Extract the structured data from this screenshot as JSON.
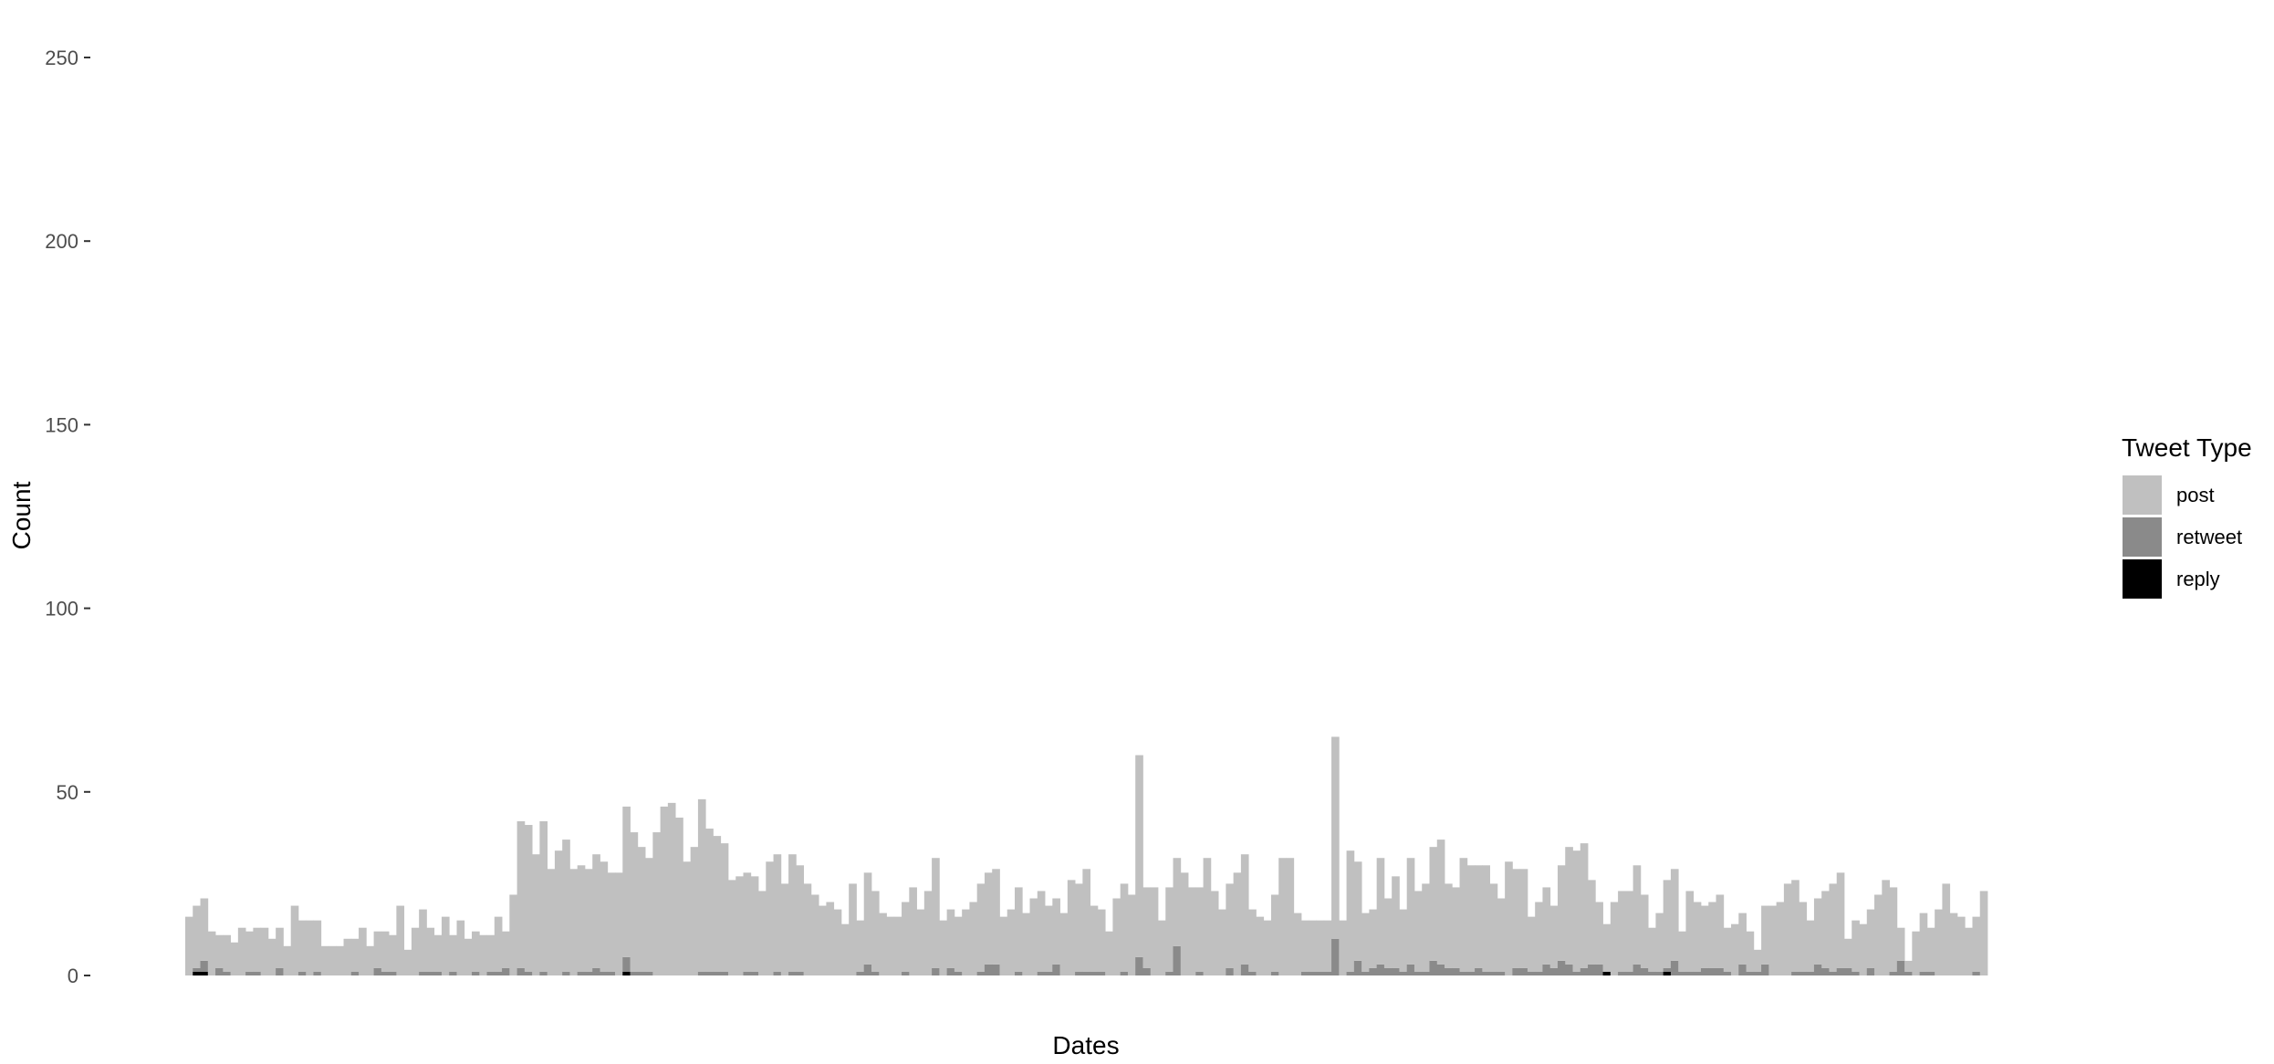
{
  "chart_data": {
    "type": "bar",
    "stacked": true,
    "xlabel": "Dates",
    "ylabel": "Count",
    "ylim": [
      0,
      260
    ],
    "yticks": [
      0,
      50,
      100,
      150,
      200,
      250
    ],
    "grid": false,
    "legend_position": "right",
    "legend": {
      "title": "Tweet Type",
      "entries": [
        {
          "label": "post",
          "color": "#c0c0c0"
        },
        {
          "label": "retweet",
          "color": "#8a8a8a"
        },
        {
          "label": "reply",
          "color": "#000000"
        }
      ]
    },
    "series": [
      {
        "name": "post",
        "color": "#c0c0c0",
        "values": [
          16,
          17,
          17,
          12,
          9,
          10,
          9,
          13,
          11,
          12,
          13,
          10,
          11,
          8,
          19,
          14,
          15,
          14,
          8,
          8,
          8,
          10,
          9,
          13,
          8,
          10,
          11,
          10,
          19,
          7,
          13,
          17,
          12,
          10,
          16,
          10,
          15,
          10,
          11,
          11,
          10,
          15,
          10,
          22,
          40,
          40,
          33,
          41,
          29,
          34,
          36,
          29,
          29,
          28,
          31,
          30,
          27,
          28,
          41,
          38,
          34,
          31,
          39,
          46,
          47,
          43,
          31,
          35,
          47,
          39,
          37,
          35,
          26,
          27,
          27,
          26,
          23,
          31,
          32,
          25,
          32,
          29,
          25,
          22,
          19,
          20,
          18,
          14,
          25,
          14,
          25,
          22,
          17,
          16,
          16,
          19,
          24,
          18,
          23,
          30,
          15,
          16,
          15,
          18,
          20,
          24,
          25,
          26,
          16,
          18,
          23,
          17,
          21,
          22,
          18,
          18,
          17,
          26,
          24,
          28,
          18,
          17,
          12,
          21,
          24,
          22,
          55,
          22,
          24,
          15,
          23,
          24,
          28,
          24,
          23,
          32,
          23,
          18,
          23,
          28,
          30,
          17,
          16,
          15,
          21,
          32,
          32,
          17,
          14,
          14,
          14,
          14,
          55,
          15,
          33,
          27,
          16,
          16,
          29,
          19,
          25,
          17,
          29,
          22,
          24,
          31,
          34,
          23,
          22,
          31,
          29,
          28,
          29,
          24,
          20,
          31,
          27,
          27,
          15,
          19,
          21,
          17,
          26,
          32,
          33,
          34,
          23,
          17,
          13,
          20,
          22,
          22,
          27,
          20,
          12,
          16,
          24,
          25,
          11,
          22,
          19,
          17,
          18,
          20,
          12,
          14,
          14,
          11,
          6,
          16,
          19,
          20,
          25,
          25,
          19,
          14,
          18,
          21,
          24,
          26,
          8,
          14,
          14,
          16,
          22,
          26,
          23,
          9,
          3,
          12,
          16,
          12,
          18,
          25,
          17,
          16,
          13,
          15,
          23
        ]
      },
      {
        "name": "retweet",
        "color": "#8a8a8a",
        "values": [
          0,
          1,
          3,
          0,
          2,
          1,
          0,
          0,
          1,
          1,
          0,
          0,
          2,
          0,
          0,
          1,
          0,
          1,
          0,
          0,
          0,
          0,
          1,
          0,
          0,
          2,
          1,
          1,
          0,
          0,
          0,
          1,
          1,
          1,
          0,
          1,
          0,
          0,
          1,
          0,
          1,
          1,
          2,
          0,
          2,
          1,
          0,
          1,
          0,
          0,
          1,
          0,
          1,
          1,
          2,
          1,
          1,
          0,
          4,
          1,
          1,
          1,
          0,
          0,
          0,
          0,
          0,
          0,
          1,
          1,
          1,
          1,
          0,
          0,
          1,
          1,
          0,
          0,
          1,
          0,
          1,
          1,
          0,
          0,
          0,
          0,
          0,
          0,
          0,
          1,
          3,
          1,
          0,
          0,
          0,
          1,
          0,
          0,
          0,
          2,
          0,
          2,
          1,
          0,
          0,
          1,
          3,
          3,
          0,
          0,
          1,
          0,
          0,
          1,
          1,
          3,
          0,
          0,
          1,
          1,
          1,
          1,
          0,
          0,
          1,
          0,
          5,
          2,
          0,
          0,
          1,
          8,
          0,
          0,
          1,
          0,
          0,
          0,
          2,
          0,
          3,
          1,
          0,
          0,
          1,
          0,
          0,
          0,
          1,
          1,
          1,
          1,
          10,
          0,
          1,
          4,
          1,
          2,
          3,
          2,
          2,
          1,
          3,
          1,
          1,
          4,
          3,
          2,
          2,
          1,
          1,
          2,
          1,
          1,
          1,
          0,
          2,
          2,
          1,
          1,
          3,
          2,
          4,
          3,
          1,
          2,
          3,
          3,
          0,
          0,
          1,
          1,
          3,
          2,
          1,
          1,
          1,
          4,
          1,
          1,
          1,
          2,
          2,
          2,
          1,
          0,
          3,
          1,
          1,
          3,
          0,
          0,
          0,
          1,
          1,
          1,
          3,
          2,
          1,
          2,
          2,
          1,
          0,
          2,
          0,
          0,
          1,
          4,
          1,
          0,
          1,
          1,
          0,
          0,
          0,
          0,
          0,
          1,
          0
        ]
      },
      {
        "name": "reply",
        "color": "#000000",
        "values": [
          0,
          1,
          1,
          0,
          0,
          0,
          0,
          0,
          0,
          0,
          0,
          0,
          0,
          0,
          0,
          0,
          0,
          0,
          0,
          0,
          0,
          0,
          0,
          0,
          0,
          0,
          0,
          0,
          0,
          0,
          0,
          0,
          0,
          0,
          0,
          0,
          0,
          0,
          0,
          0,
          0,
          0,
          0,
          0,
          0,
          0,
          0,
          0,
          0,
          0,
          0,
          0,
          0,
          0,
          0,
          0,
          0,
          0,
          1,
          0,
          0,
          0,
          0,
          0,
          0,
          0,
          0,
          0,
          0,
          0,
          0,
          0,
          0,
          0,
          0,
          0,
          0,
          0,
          0,
          0,
          0,
          0,
          0,
          0,
          0,
          0,
          0,
          0,
          0,
          0,
          0,
          0,
          0,
          0,
          0,
          0,
          0,
          0,
          0,
          0,
          0,
          0,
          0,
          0,
          0,
          0,
          0,
          0,
          0,
          0,
          0,
          0,
          0,
          0,
          0,
          0,
          0,
          0,
          0,
          0,
          0,
          0,
          0,
          0,
          0,
          0,
          0,
          0,
          0,
          0,
          0,
          0,
          0,
          0,
          0,
          0,
          0,
          0,
          0,
          0,
          0,
          0,
          0,
          0,
          0,
          0,
          0,
          0,
          0,
          0,
          0,
          0,
          0,
          0,
          0,
          0,
          0,
          0,
          0,
          0,
          0,
          0,
          0,
          0,
          0,
          0,
          0,
          0,
          0,
          0,
          0,
          0,
          0,
          0,
          0,
          0,
          0,
          0,
          0,
          0,
          0,
          0,
          0,
          0,
          0,
          0,
          0,
          0,
          1,
          0,
          0,
          0,
          0,
          0,
          0,
          0,
          1,
          0,
          0,
          0,
          0,
          0,
          0,
          0,
          0,
          0,
          0,
          0,
          0,
          0,
          0,
          0,
          0,
          0,
          0,
          0,
          0,
          0,
          0,
          0,
          0,
          0,
          0,
          0,
          0,
          0,
          0,
          0,
          0,
          0,
          0,
          0,
          0,
          0,
          0,
          0,
          0,
          0,
          0,
          0,
          0,
          0,
          0,
          0,
          0,
          0,
          0,
          0,
          0,
          0,
          0
        ]
      }
    ]
  }
}
